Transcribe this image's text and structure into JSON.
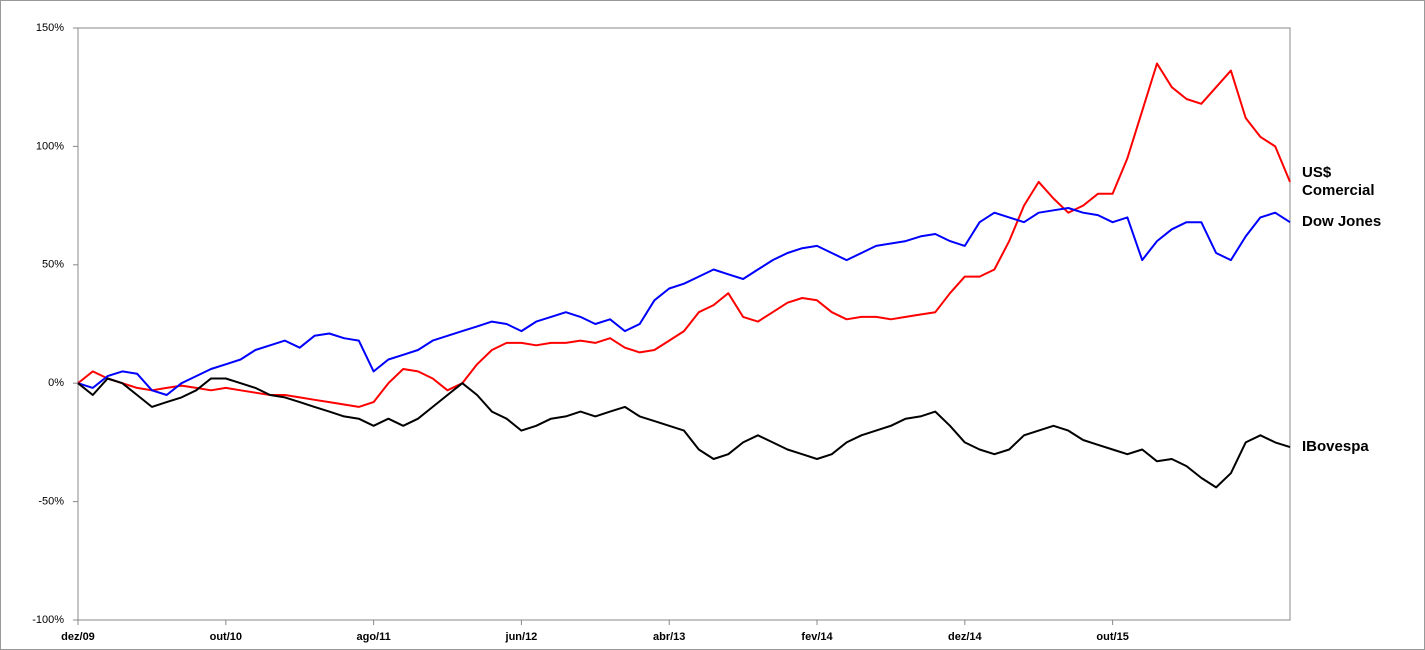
{
  "chart_data": {
    "type": "line",
    "categories": [
      "dez/09",
      null,
      null,
      null,
      null,
      null,
      null,
      null,
      null,
      null,
      "out/10",
      null,
      null,
      null,
      null,
      null,
      null,
      null,
      null,
      null,
      "ago/11",
      null,
      null,
      null,
      null,
      null,
      null,
      null,
      null,
      null,
      "jun/12",
      null,
      null,
      null,
      null,
      null,
      null,
      null,
      null,
      null,
      "abr/13",
      null,
      null,
      null,
      null,
      null,
      null,
      null,
      null,
      null,
      "fev/14",
      null,
      null,
      null,
      null,
      null,
      null,
      null,
      null,
      null,
      "dez/14",
      null,
      null,
      null,
      null,
      null,
      null,
      null,
      null,
      null,
      "out/15",
      null,
      null,
      null,
      null,
      null,
      null,
      null,
      null,
      null,
      null,
      null,
      null
    ],
    "series": [
      {
        "name": "US$ Comercial",
        "color": "#ff0000",
        "values": [
          0,
          5,
          2,
          0,
          -2,
          -3,
          -2,
          -1,
          -2,
          -3,
          -2,
          -3,
          -4,
          -5,
          -5,
          -6,
          -7,
          -8,
          -9,
          -10,
          -8,
          0,
          6,
          5,
          2,
          -3,
          0,
          8,
          14,
          17,
          17,
          16,
          17,
          17,
          18,
          17,
          19,
          15,
          13,
          14,
          18,
          22,
          30,
          33,
          38,
          28,
          26,
          30,
          34,
          36,
          35,
          30,
          27,
          28,
          28,
          27,
          28,
          29,
          30,
          38,
          45,
          45,
          48,
          60,
          75,
          85,
          78,
          72,
          75,
          80,
          80,
          95,
          115,
          135,
          125,
          120,
          118,
          125,
          132,
          112,
          104,
          100,
          85
        ]
      },
      {
        "name": "Dow Jones",
        "color": "#0000ff",
        "values": [
          0,
          -2,
          3,
          5,
          4,
          -3,
          -5,
          0,
          3,
          6,
          8,
          10,
          14,
          16,
          18,
          15,
          20,
          21,
          19,
          18,
          5,
          10,
          12,
          14,
          18,
          20,
          22,
          24,
          26,
          25,
          22,
          26,
          28,
          30,
          28,
          25,
          27,
          22,
          25,
          35,
          40,
          42,
          45,
          48,
          46,
          44,
          48,
          52,
          55,
          57,
          58,
          55,
          52,
          55,
          58,
          59,
          60,
          62,
          63,
          60,
          58,
          68,
          72,
          70,
          68,
          72,
          73,
          74,
          72,
          71,
          68,
          70,
          52,
          60,
          65,
          68,
          68,
          55,
          52,
          62,
          70,
          72,
          68
        ]
      },
      {
        "name": "IBovespa",
        "color": "#000000",
        "values": [
          0,
          -5,
          2,
          0,
          -5,
          -10,
          -8,
          -6,
          -3,
          2,
          2,
          0,
          -2,
          -5,
          -6,
          -8,
          -10,
          -12,
          -14,
          -15,
          -18,
          -15,
          -18,
          -15,
          -10,
          -5,
          0,
          -5,
          -12,
          -15,
          -20,
          -18,
          -15,
          -14,
          -12,
          -14,
          -12,
          -10,
          -14,
          -16,
          -18,
          -20,
          -28,
          -32,
          -30,
          -25,
          -22,
          -25,
          -28,
          -30,
          -32,
          -30,
          -25,
          -22,
          -20,
          -18,
          -15,
          -14,
          -12,
          -18,
          -25,
          -28,
          -30,
          -28,
          -22,
          -20,
          -18,
          -20,
          -24,
          -26,
          -28,
          -30,
          -28,
          -33,
          -32,
          -35,
          -40,
          -44,
          -38,
          -25,
          -22,
          -25,
          -27
        ]
      }
    ],
    "ylim": [
      -100,
      150
    ],
    "yticks": [
      {
        "value": -100,
        "label": "-100%"
      },
      {
        "value": -50,
        "label": "-50%"
      },
      {
        "value": 0,
        "label": "0%"
      },
      {
        "value": 50,
        "label": "50%"
      },
      {
        "value": 100,
        "label": "100%"
      },
      {
        "value": 150,
        "label": "150%"
      }
    ],
    "grid": false
  }
}
